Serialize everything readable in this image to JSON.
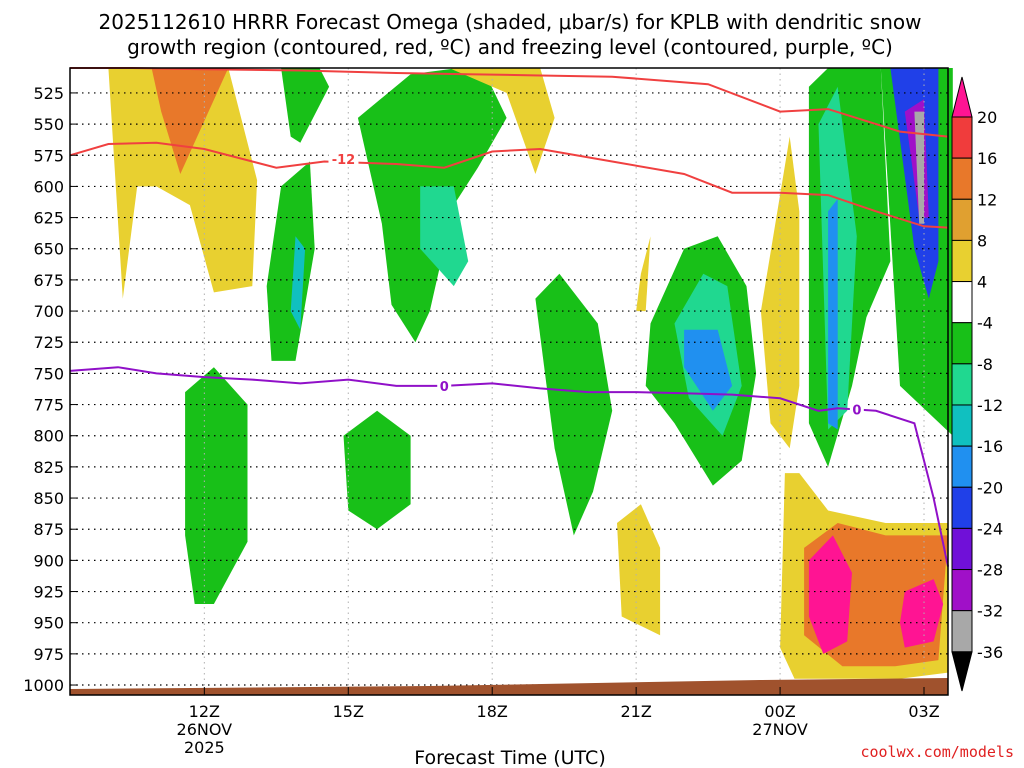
{
  "chart_data": {
    "type": "heatmap",
    "title_line1": "2025112610 HRRR Forecast Omega (shaded, μbar/s) for KPLB with dendritic snow",
    "title_line2": "growth region (contoured, red, ºC) and freezing level (contoured, purple, ºC)",
    "xlabel": "Forecast Time (UTC)",
    "credit": "coolwx.com/models",
    "x_hours_range": [
      9.2,
      27.5
    ],
    "ylim_hpa": [
      505,
      1008
    ],
    "x_ticks": [
      {
        "h": 12,
        "label": "12Z",
        "sub1": "26NOV",
        "sub2": "2025"
      },
      {
        "h": 15,
        "label": "15Z",
        "sub1": "",
        "sub2": ""
      },
      {
        "h": 18,
        "label": "18Z",
        "sub1": "",
        "sub2": ""
      },
      {
        "h": 21,
        "label": "21Z",
        "sub1": "",
        "sub2": ""
      },
      {
        "h": 24,
        "label": "00Z",
        "sub1": "27NOV",
        "sub2": ""
      },
      {
        "h": 27,
        "label": "03Z",
        "sub1": "",
        "sub2": ""
      }
    ],
    "y_ticks": [
      "525",
      "550",
      "575",
      "600",
      "625",
      "650",
      "675",
      "700",
      "725",
      "750",
      "775",
      "800",
      "825",
      "850",
      "875",
      "900",
      "925",
      "950",
      "975",
      "1000"
    ],
    "colorbar": {
      "levels": [
        "20",
        "16",
        "12",
        "8",
        "4",
        "-4",
        "-8",
        "-12",
        "-16",
        "-20",
        "-24",
        "-28",
        "-32",
        "-36"
      ],
      "colors": [
        "#ff1493",
        "#f03c3c",
        "#e8782a",
        "#e0a030",
        "#e8d030",
        "#ffffff",
        "#18c018",
        "#20d890",
        "#10c0c0",
        "#2090f0",
        "#2040e8",
        "#7010d8",
        "#a010c8",
        "#a8a8a8",
        "#000000"
      ]
    },
    "isotherm_minus12": {
      "label": "-12",
      "upper_h": [
        9.2,
        10.5,
        12.0,
        14.0,
        16.0,
        17.5,
        19.0,
        20.5,
        22.5,
        24.0,
        25.0,
        26.5,
        27.5
      ],
      "upper_p": [
        505,
        505,
        506,
        507,
        509,
        510,
        511,
        512,
        518,
        540,
        538,
        556,
        560
      ],
      "lower_h": [
        9.2,
        10.0,
        11.0,
        12.0,
        13.5,
        14.5,
        16.0,
        17.0,
        18.0,
        19.0,
        20.5,
        22.0,
        23.0,
        24.0,
        25.0,
        26.0,
        27.0,
        27.5
      ],
      "lower_p": [
        575,
        566,
        565,
        570,
        585,
        580,
        582,
        585,
        572,
        570,
        580,
        590,
        605,
        605,
        607,
        620,
        632,
        633
      ]
    },
    "isotherm_zero": {
      "label": "0",
      "h": [
        9.2,
        10.2,
        11.0,
        12.0,
        13.0,
        14.0,
        15.0,
        16.0,
        17.0,
        18.0,
        19.0,
        20.0,
        21.0,
        22.0,
        23.0,
        24.0,
        24.8,
        25.2,
        26.0,
        26.8,
        27.2,
        27.5
      ],
      "p": [
        748,
        745,
        750,
        753,
        755,
        758,
        755,
        760,
        760,
        758,
        762,
        765,
        765,
        766,
        767,
        770,
        780,
        778,
        780,
        790,
        850,
        905
      ]
    },
    "omega_regions": [
      {
        "v": 4,
        "h": [
          10.0,
          10.4,
          11.2,
          12.5,
          13.1,
          13.0,
          12.2,
          11.7,
          11.0,
          10.6,
          10.3
        ],
        "p": [
          505,
          505,
          505,
          505,
          595,
          680,
          685,
          615,
          600,
          600,
          690
        ]
      },
      {
        "v": 12,
        "h": [
          10.9,
          12.5,
          11.5,
          11.1
        ],
        "p": [
          505,
          505,
          590,
          540
        ]
      },
      {
        "v": -8,
        "h": [
          13.6,
          14.4,
          14.6,
          14.0,
          13.8
        ],
        "p": [
          505,
          505,
          520,
          565,
          560
        ]
      },
      {
        "v": -8,
        "h": [
          15.2,
          16.3,
          17.3,
          17.8,
          18.3,
          17.7,
          17.2,
          16.7,
          16.4,
          15.9,
          15.7
        ],
        "p": [
          545,
          510,
          505,
          505,
          545,
          585,
          615,
          700,
          725,
          695,
          630
        ]
      },
      {
        "v": -12,
        "h": [
          16.5,
          17.2,
          17.5,
          17.2,
          16.5
        ],
        "p": [
          600,
          600,
          660,
          680,
          650
        ]
      },
      {
        "v": 4,
        "h": [
          17.1,
          19.0,
          19.3,
          18.9,
          18.3
        ],
        "p": [
          505,
          505,
          545,
          590,
          525
        ]
      },
      {
        "v": -8,
        "h": [
          13.6,
          14.2,
          14.3,
          13.9,
          13.4,
          13.3
        ],
        "p": [
          600,
          580,
          650,
          740,
          740,
          680
        ]
      },
      {
        "v": -16,
        "h": [
          13.9,
          14.1,
          14.0,
          13.8
        ],
        "p": [
          640,
          650,
          715,
          700
        ]
      },
      {
        "v": -8,
        "h": [
          11.6,
          12.2,
          12.9,
          12.9,
          12.2,
          11.8,
          11.6
        ],
        "p": [
          765,
          745,
          775,
          885,
          935,
          935,
          880
        ]
      },
      {
        "v": -8,
        "h": [
          14.9,
          15.6,
          16.3,
          16.3,
          15.6,
          15.0
        ],
        "p": [
          800,
          780,
          800,
          855,
          875,
          860
        ]
      },
      {
        "v": -8,
        "h": [
          18.9,
          19.4,
          20.2,
          20.5,
          20.1,
          19.7,
          19.3
        ],
        "p": [
          690,
          670,
          710,
          780,
          845,
          880,
          810
        ]
      },
      {
        "v": -8,
        "h": [
          21.3,
          22.0,
          22.7,
          23.3,
          23.5,
          23.2,
          22.6,
          21.8,
          21.2
        ],
        "p": [
          710,
          650,
          640,
          680,
          750,
          820,
          840,
          790,
          760
        ]
      },
      {
        "v": -12,
        "h": [
          21.8,
          22.4,
          22.9,
          23.2,
          22.8,
          22.1
        ],
        "p": [
          710,
          670,
          680,
          760,
          800,
          770
        ]
      },
      {
        "v": -20,
        "h": [
          22.0,
          22.7,
          23.0,
          22.6,
          22.0
        ],
        "p": [
          715,
          715,
          760,
          780,
          745
        ]
      },
      {
        "v": 4,
        "h": [
          21.1,
          21.3,
          21.2,
          21.0
        ],
        "p": [
          670,
          640,
          700,
          700
        ]
      },
      {
        "v": 4,
        "h": [
          20.6,
          21.1,
          21.5,
          21.5,
          20.7
        ],
        "p": [
          870,
          855,
          890,
          960,
          945
        ]
      },
      {
        "v": 4,
        "h": [
          23.6,
          24.2,
          24.4,
          24.4,
          24.2,
          23.8
        ],
        "p": [
          700,
          560,
          620,
          760,
          810,
          790
        ]
      },
      {
        "v": -8,
        "h": [
          24.6,
          25.0,
          26.1,
          26.3,
          25.8,
          25.5,
          25.0,
          24.6
        ],
        "p": [
          520,
          505,
          505,
          660,
          705,
          760,
          825,
          790
        ]
      },
      {
        "v": -12,
        "h": [
          24.8,
          25.2,
          25.6,
          25.4,
          25.0
        ],
        "p": [
          550,
          520,
          640,
          780,
          795
        ]
      },
      {
        "v": -20,
        "h": [
          25.0,
          25.2,
          25.2,
          25.0
        ],
        "p": [
          620,
          610,
          795,
          790
        ]
      },
      {
        "v": -8,
        "h": [
          26.1,
          27.6,
          27.6,
          26.5
        ],
        "p": [
          505,
          505,
          800,
          760
        ]
      },
      {
        "v": -24,
        "h": [
          26.3,
          27.3,
          27.3,
          27.1,
          26.8
        ],
        "p": [
          505,
          505,
          660,
          690,
          650
        ]
      },
      {
        "v": -32,
        "h": [
          26.6,
          27.0,
          27.1,
          26.9
        ],
        "p": [
          540,
          530,
          625,
          625
        ]
      },
      {
        "v": -36,
        "h": [
          26.8,
          27.0,
          27.0,
          26.9
        ],
        "p": [
          540,
          540,
          630,
          630
        ]
      },
      {
        "v": 4,
        "h": [
          24.1,
          24.4,
          25.0,
          26.2,
          27.5,
          27.5,
          26.5,
          25.3,
          24.3,
          24.0
        ],
        "p": [
          830,
          830,
          860,
          870,
          870,
          990,
          995,
          995,
          995,
          970
        ]
      },
      {
        "v": 12,
        "h": [
          24.5,
          25.2,
          26.2,
          27.5,
          27.3,
          26.4,
          25.3,
          24.5
        ],
        "p": [
          890,
          870,
          880,
          880,
          980,
          985,
          985,
          960
        ]
      },
      {
        "v": 20,
        "h": [
          24.6,
          25.1,
          25.5,
          25.4,
          24.9,
          24.6
        ],
        "p": [
          900,
          880,
          910,
          965,
          975,
          945
        ]
      },
      {
        "v": 20,
        "h": [
          26.6,
          27.2,
          27.4,
          27.2,
          26.6,
          26.5
        ],
        "p": [
          925,
          915,
          935,
          965,
          970,
          950
        ]
      }
    ]
  }
}
